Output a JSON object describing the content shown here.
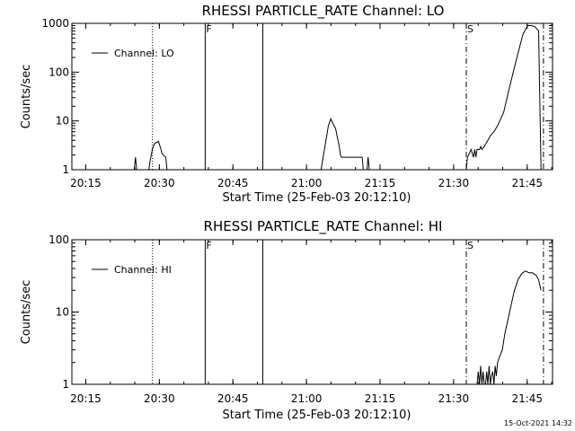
{
  "stamp": "15-Oct-2021 14:32",
  "chart_data": [
    {
      "type": "line",
      "title": "RHESSI PARTICLE_RATE Channel: LO",
      "xlabel": "Start Time (25-Feb-03 20:12:10)",
      "ylabel": "Counts/sec",
      "yscale": "log",
      "xlim": [
        "20:12:10",
        "21:50:10"
      ],
      "ylim": [
        1,
        1000
      ],
      "x_ticks": [
        "20:15",
        "20:30",
        "20:45",
        "21:00",
        "21:15",
        "21:30",
        "21:45"
      ],
      "y_ticks": [
        "1",
        "10",
        "100",
        "1000"
      ],
      "grid": false,
      "legend": "top-left",
      "series": [
        {
          "name": "Channel: LO",
          "x": [
            "20:12:10",
            "20:24:53",
            "20:25:08",
            "20:25:22",
            "20:25:37",
            "20:27:37",
            "20:27:52",
            "20:28:06",
            "20:28:36",
            "20:29:06",
            "20:29:50",
            "20:30:20",
            "20:30:35",
            "20:31:19",
            "20:31:34",
            "20:32:18",
            "20:46:00",
            "20:46:05",
            "20:46:10",
            "20:46:15",
            "20:47:00",
            "20:47:05",
            "21:02:45",
            "21:02:59",
            "21:03:29",
            "21:03:58",
            "21:04:28",
            "21:04:57",
            "21:05:27",
            "21:05:56",
            "21:06:41",
            "21:06:55",
            "21:07:10",
            "21:11:06",
            "21:11:21",
            "21:11:35",
            "21:12:20",
            "21:12:34",
            "21:12:49",
            "21:32:35",
            "21:32:49",
            "21:33:33",
            "21:34:03",
            "21:34:18",
            "21:34:32",
            "21:34:47",
            "21:35:16",
            "21:35:31",
            "21:35:46",
            "21:36:15",
            "21:37:00",
            "21:37:29",
            "21:38:13",
            "21:38:58",
            "21:40:12",
            "21:41:11",
            "21:42:10",
            "21:43:09",
            "21:44:08",
            "21:45:07",
            "21:45:51",
            "21:46:36",
            "21:47:20",
            "21:47:49"
          ],
          "values": [
            1,
            1,
            1.8,
            1,
            1,
            1,
            1,
            1.5,
            2.7,
            3.5,
            3.8,
            2.6,
            2.1,
            1.8,
            1,
            1,
            1,
            1,
            1,
            1,
            1,
            1,
            1,
            1,
            2,
            4,
            8,
            11,
            8.5,
            7,
            3,
            2,
            1.8,
            1.8,
            1.8,
            1,
            1,
            1.8,
            1,
            1,
            1.8,
            2.6,
            1.8,
            2.6,
            1.8,
            2.6,
            2.6,
            3,
            2.6,
            3,
            4,
            5,
            6,
            8,
            15,
            40,
            100,
            250,
            600,
            900,
            900,
            850,
            700,
            1
          ]
        }
      ],
      "markers": [
        {
          "time": "20:28:36",
          "style": "dotted",
          "label": ""
        },
        {
          "time": "20:39:21",
          "style": "solid",
          "label": "F"
        },
        {
          "time": "20:51:06",
          "style": "solid",
          "label": ""
        },
        {
          "time": "21:32:35",
          "style": "dash-dot",
          "label": "S"
        },
        {
          "time": "21:48:19",
          "style": "dash-dot",
          "label": ""
        }
      ]
    },
    {
      "type": "line",
      "title": "RHESSI PARTICLE_RATE Channel: HI",
      "xlabel": "Start Time (25-Feb-03 20:12:10)",
      "ylabel": "Counts/sec",
      "yscale": "log",
      "xlim": [
        "20:12:10",
        "21:50:10"
      ],
      "ylim": [
        1,
        100
      ],
      "x_ticks": [
        "20:15",
        "20:30",
        "20:45",
        "21:00",
        "21:15",
        "21:30",
        "21:45"
      ],
      "y_ticks": [
        "1",
        "10",
        "100"
      ],
      "grid": false,
      "legend": "top-left",
      "series": [
        {
          "name": "Channel: HI",
          "x": [
            "21:34:47",
            "21:35:01",
            "21:35:16",
            "21:35:31",
            "21:35:46",
            "21:36:00",
            "21:36:15",
            "21:36:30",
            "21:36:44",
            "21:36:59",
            "21:37:14",
            "21:37:29",
            "21:37:43",
            "21:37:58",
            "21:38:13",
            "21:38:28",
            "21:38:42",
            "21:38:57",
            "21:39:27",
            "21:39:56",
            "21:40:26",
            "21:40:55",
            "21:41:40",
            "21:42:24",
            "21:43:08",
            "21:43:53",
            "21:44:37",
            "21:45:22",
            "21:46:06",
            "21:46:51",
            "21:47:20",
            "21:47:49"
          ],
          "values": [
            1,
            1.5,
            1,
            1.8,
            1,
            1.5,
            1,
            1,
            1.5,
            1,
            1.8,
            1,
            1.3,
            1.5,
            1,
            1.8,
            1.3,
            2,
            2.5,
            3,
            5,
            7,
            12,
            20,
            28,
            34,
            37,
            35,
            35,
            32,
            28,
            20
          ]
        }
      ],
      "markers": [
        {
          "time": "20:28:36",
          "style": "dotted",
          "label": ""
        },
        {
          "time": "20:39:21",
          "style": "solid",
          "label": "F"
        },
        {
          "time": "20:51:06",
          "style": "solid",
          "label": ""
        },
        {
          "time": "21:32:35",
          "style": "dash-dot",
          "label": "S"
        },
        {
          "time": "21:48:19",
          "style": "dash-dot",
          "label": ""
        }
      ]
    }
  ]
}
